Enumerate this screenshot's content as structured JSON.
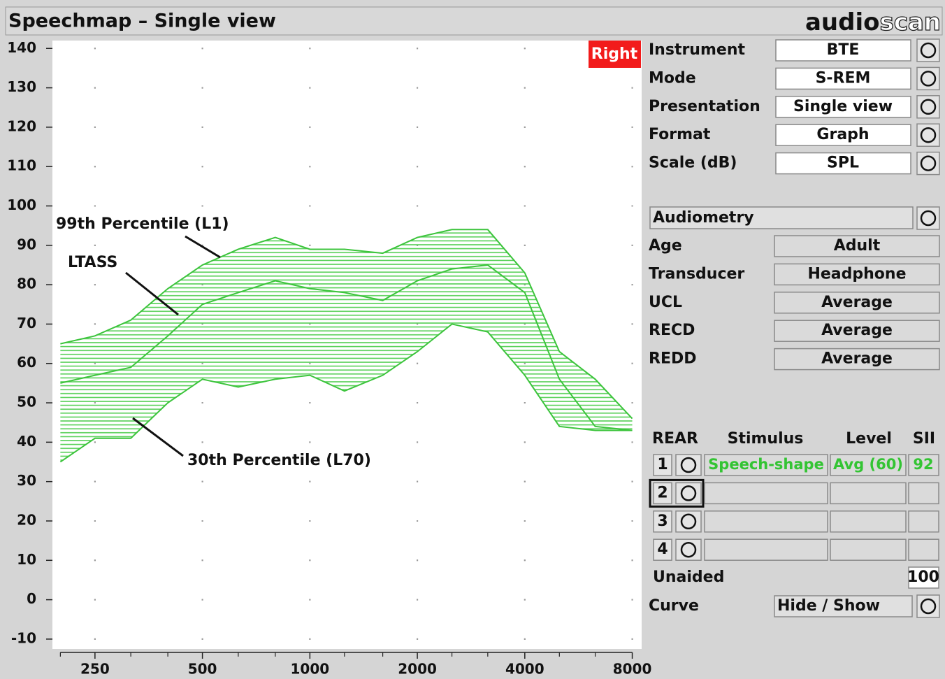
{
  "header": {
    "title": "Speechmap – Single view",
    "logo_bold": "audio",
    "logo_outline": "scan"
  },
  "chart_data": {
    "type": "line",
    "ear_label": "Right",
    "xscale": "log",
    "x": [
      200,
      250,
      315,
      400,
      500,
      630,
      800,
      1000,
      1250,
      1600,
      2000,
      2500,
      3150,
      4000,
      5000,
      6300,
      8000
    ],
    "series": [
      {
        "name": "99th Percentile (L1)",
        "color": "#3cc43c",
        "values": [
          65,
          67,
          71,
          79,
          85,
          89,
          92,
          89,
          89,
          88,
          92,
          94,
          94,
          83,
          63,
          56,
          46
        ]
      },
      {
        "name": "LTASS",
        "color": "#3cc43c",
        "values": [
          55,
          57,
          59,
          67,
          75,
          78,
          81,
          79,
          78,
          76,
          81,
          84,
          85,
          78,
          56,
          44,
          43
        ]
      },
      {
        "name": "30th Percentile (L70)",
        "color": "#3cc43c",
        "values": [
          35,
          41,
          41,
          50,
          56,
          54,
          56,
          57,
          53,
          57,
          63,
          70,
          68,
          57,
          44,
          43,
          43
        ]
      }
    ],
    "band_color": "#55d055",
    "xlim": [
      190,
      8500
    ],
    "xticks": [
      250,
      500,
      1000,
      2000,
      4000,
      8000
    ],
    "xminorticks": [
      200,
      315,
      400,
      630,
      800,
      1250,
      1600,
      2500,
      3150,
      5000,
      6300
    ],
    "ylim": [
      -12.5,
      142
    ],
    "yticks": [
      -10,
      0,
      10,
      20,
      30,
      40,
      50,
      60,
      70,
      80,
      90,
      100,
      110,
      120,
      130,
      140
    ],
    "grid": true
  },
  "settings": [
    {
      "label": "Instrument",
      "value": "BTE"
    },
    {
      "label": "Mode",
      "value": "S-REM"
    },
    {
      "label": "Presentation",
      "value": "Single view"
    },
    {
      "label": "Format",
      "value": "Graph"
    },
    {
      "label": "Scale (dB)",
      "value": "SPL"
    }
  ],
  "audiometry": {
    "title": "Audiometry",
    "rows": [
      {
        "label": "Age",
        "value": "Adult"
      },
      {
        "label": "Transducer",
        "value": "Headphone"
      },
      {
        "label": "UCL",
        "value": "Average"
      },
      {
        "label": "RECD",
        "value": "Average"
      },
      {
        "label": "REDD",
        "value": "Average"
      }
    ]
  },
  "rear": {
    "headers": [
      "REAR",
      "Stimulus",
      "Level",
      "SII"
    ],
    "rows": [
      {
        "number": "1",
        "stimulus": "Speech-shape",
        "level": "Avg (60)",
        "sii": 92
      },
      {
        "number": "2"
      },
      {
        "number": "3"
      },
      {
        "number": "4"
      }
    ]
  },
  "unaided": {
    "label": "Unaided",
    "value": 100
  },
  "curve": {
    "label": "Curve",
    "value": "Hide / Show"
  }
}
